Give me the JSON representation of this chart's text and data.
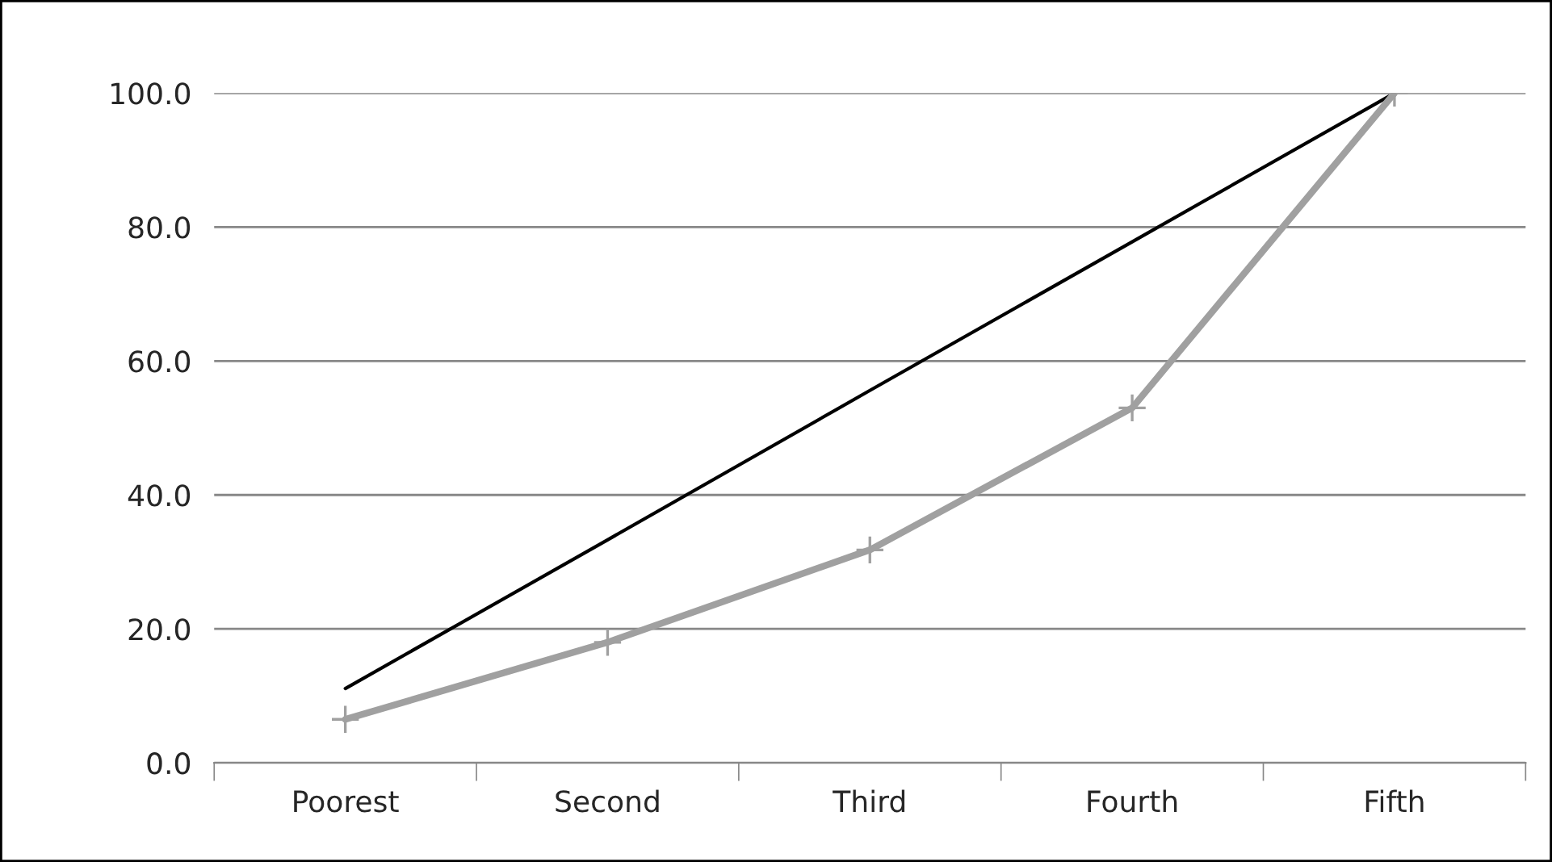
{
  "chart_data": {
    "type": "line",
    "categories": [
      "Poorest",
      "Second",
      "Third",
      "Fourth",
      "Fifth"
    ],
    "series": [
      {
        "color": "#000000",
        "values": [
          11.1,
          33.3,
          55.6,
          77.8,
          100.0
        ],
        "marker": "none"
      },
      {
        "color": "#a0a0a0",
        "values": [
          6.5,
          18.0,
          31.8,
          53.0,
          100.0
        ],
        "marker": "cross"
      }
    ],
    "ylim": [
      0,
      100
    ],
    "yticks": [
      {
        "value": 0,
        "label": "0.0"
      },
      {
        "value": 20,
        "label": "20.0"
      },
      {
        "value": 40,
        "label": "40.0"
      },
      {
        "value": 60,
        "label": "60.0"
      },
      {
        "value": 80,
        "label": "80.0"
      },
      {
        "value": 100,
        "label": "100.0"
      }
    ],
    "grid": "y"
  }
}
